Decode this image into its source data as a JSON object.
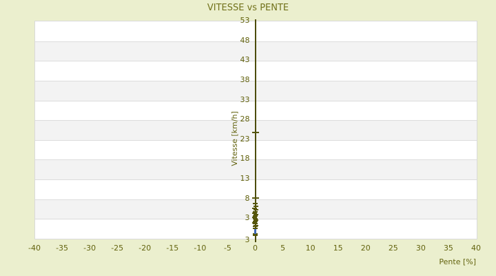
{
  "title": "VITESSE vs PENTE",
  "chart_data": {
    "type": "scatter",
    "title": "VITESSE vs PENTE",
    "xlabel": "Pente [%]",
    "ylabel": "Vitesse [km/h]",
    "xlim": [
      -40,
      40
    ],
    "ylim": [
      -2,
      53
    ],
    "x_ticks": [
      -40,
      -35,
      -30,
      -25,
      -20,
      -15,
      -10,
      -5,
      0,
      5,
      10,
      15,
      20,
      25,
      30,
      35,
      40
    ],
    "y_ticks": [
      53,
      48,
      43,
      38,
      33,
      28,
      23,
      18,
      13,
      8,
      3
    ],
    "y_axis_min_edge_label": "3",
    "y_axis_drawn_at_x": 0,
    "grid": "horizontal-alternating-bands",
    "legend": "none",
    "series": [
      {
        "name": "vitesse-points-olive",
        "color": "#55550c",
        "marker": "dash",
        "marker_w": 7,
        "marker_h": 2,
        "points": [
          [
            0,
            24.7,
            10
          ],
          [
            0,
            8.1,
            10
          ],
          [
            0,
            6.7
          ],
          [
            0.1,
            6.1
          ],
          [
            -0.1,
            5.5
          ],
          [
            0.1,
            5.1
          ],
          [
            0,
            4.7
          ],
          [
            -0.1,
            4.3
          ],
          [
            0.1,
            4.0
          ],
          [
            0,
            3.6
          ],
          [
            -0.1,
            3.3
          ],
          [
            0.05,
            2.9
          ],
          [
            0.1,
            2.6
          ],
          [
            0,
            2.2
          ],
          [
            -0.1,
            1.9
          ],
          [
            0,
            1.6
          ],
          [
            0.1,
            1.2
          ],
          [
            0,
            0.9
          ],
          [
            0,
            0.5
          ],
          [
            0,
            -0.9
          ],
          [
            0,
            -1.3
          ]
        ]
      },
      {
        "name": "vitesse-point-bleu",
        "color": "#4068b8",
        "marker": "square",
        "marker_w": 3,
        "marker_h": 7,
        "points": [
          [
            0,
            -0.3
          ]
        ]
      }
    ]
  },
  "colors": {
    "background": "#ebefce",
    "band_light": "#ffffff",
    "band_dark": "#f3f3f3",
    "gridline": "#dcdcdc",
    "plot_border": "#d9d9d9",
    "axis_line": "#4c4c08",
    "tick_text": "#63630f",
    "title_text": "#72721c"
  }
}
